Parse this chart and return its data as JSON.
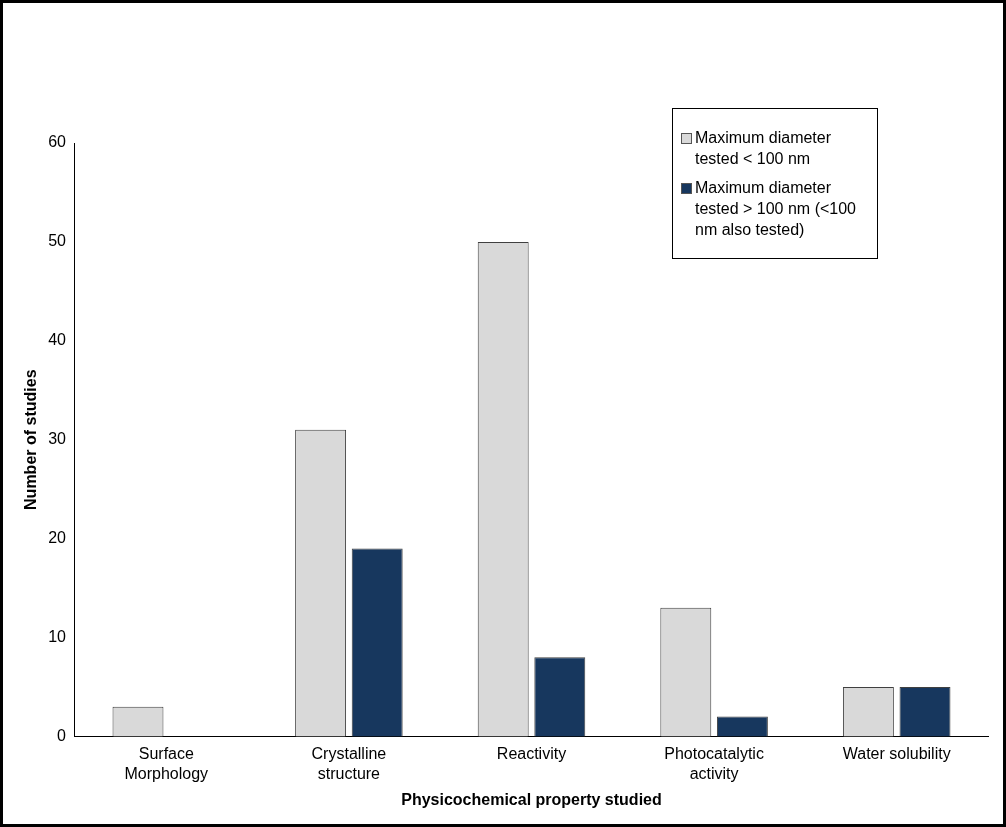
{
  "chart_data": {
    "type": "bar",
    "xlabel": "Physicochemical property studied",
    "ylabel": "Number of studies",
    "categories": [
      "Surface\nMorphology",
      "Crystalline\nstructure",
      "Reactivity",
      "Photocatalytic\nactivity",
      "Water solubility"
    ],
    "series": [
      {
        "name": "Maximum diameter tested < 100 nm",
        "color": "#d9d9d9",
        "values": [
          3,
          31,
          50,
          13,
          5
        ]
      },
      {
        "name": "Maximum diameter tested > 100 nm (<100 nm also tested)",
        "color": "#17375e",
        "values": [
          0,
          19,
          8,
          2,
          5
        ]
      }
    ],
    "ylim": [
      0,
      60
    ],
    "yticks": [
      0,
      10,
      20,
      30,
      40,
      50,
      60
    ],
    "grid": false,
    "legend": "top right"
  }
}
